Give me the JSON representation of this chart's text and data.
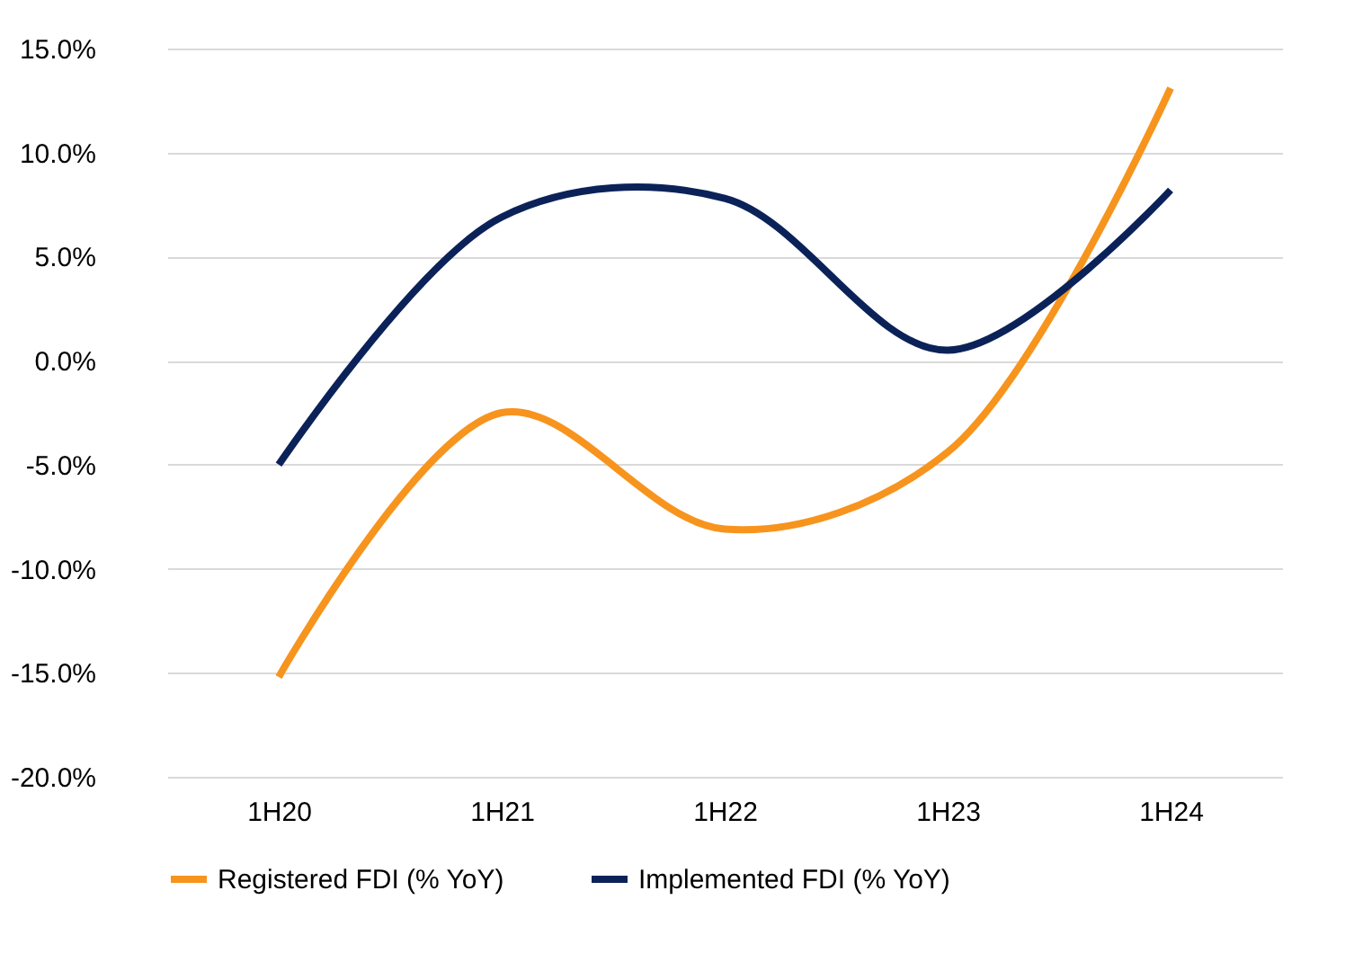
{
  "chart_data": {
    "type": "line",
    "categories": [
      "1H20",
      "1H21",
      "1H22",
      "1H23",
      "1H24"
    ],
    "series": [
      {
        "name": "Registered FDI (% YoY)",
        "color": "#f7941d",
        "values": [
          -15.2,
          -2.5,
          -8.1,
          -4.4,
          13.1
        ]
      },
      {
        "name": "Implemented FDI (% YoY)",
        "color": "#0b2259",
        "values": [
          -5.0,
          6.9,
          7.8,
          0.5,
          8.2
        ]
      }
    ],
    "ylim": [
      -20,
      15
    ],
    "yticks": [
      {
        "value": -20,
        "label": "-20.0%"
      },
      {
        "value": -15,
        "label": "-15.0%"
      },
      {
        "value": -10,
        "label": "-10.0%"
      },
      {
        "value": -5,
        "label": "-5.0%"
      },
      {
        "value": 0,
        "label": "0.0%"
      },
      {
        "value": 5,
        "label": "5.0%"
      },
      {
        "value": 10,
        "label": "10.0%"
      },
      {
        "value": 15,
        "label": "15.0%"
      }
    ],
    "grid": "y",
    "legend": "bottom",
    "marker": "none",
    "line_style": "solid"
  }
}
